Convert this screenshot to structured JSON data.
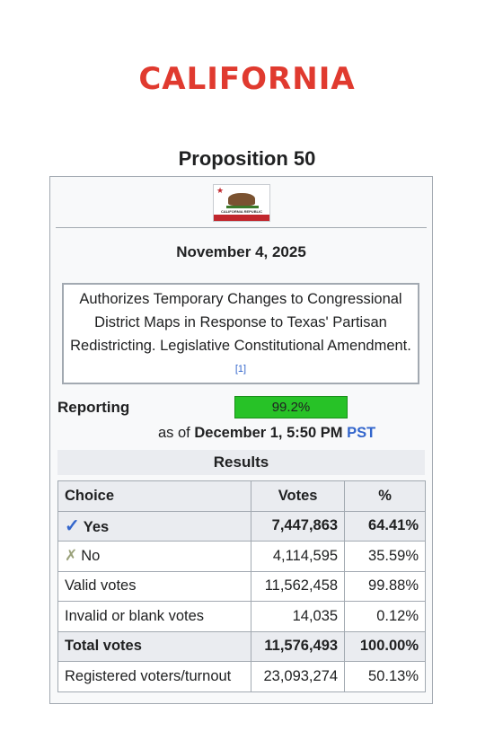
{
  "headline": "CALIFORNIA",
  "infobox": {
    "caption": "Proposition 50",
    "flag_text": "CALIFORNIA REPUBLIC",
    "date": "November 4, 2025",
    "description": "Authorizes Temporary Changes to Congressional District Maps in Response to Texas' Partisan Redistricting. Legislative Constitutional Amendment.",
    "citation": "[1]",
    "reporting_label": "Reporting",
    "reporting_value": "99.2%",
    "reporting_fraction": 0.992,
    "as_of_prefix": "as of",
    "as_of_time": "December 1, 5:50 PM",
    "as_of_tz": "PST",
    "results_title": "Results",
    "columns": [
      "Choice",
      "Votes",
      "%"
    ],
    "rows": [
      {
        "choice": "Yes",
        "votes": "7,447,863",
        "pct": "64.41%"
      },
      {
        "choice": "No",
        "votes": "4,114,595",
        "pct": "35.59%"
      },
      {
        "choice": "Valid votes",
        "votes": "11,562,458",
        "pct": "99.88%"
      },
      {
        "choice": "Invalid or blank votes",
        "votes": "14,035",
        "pct": "0.12%"
      },
      {
        "choice": "Total votes",
        "votes": "11,576,493",
        "pct": "100.00%"
      },
      {
        "choice": "Registered voters/turnout",
        "votes": "23,093,274",
        "pct": "50.13%"
      }
    ],
    "yes_icon": "check-icon",
    "no_icon": "cross-icon",
    "colors": {
      "headline": "#e03a2f",
      "bar": "#27c227",
      "link": "#3366cc"
    }
  }
}
